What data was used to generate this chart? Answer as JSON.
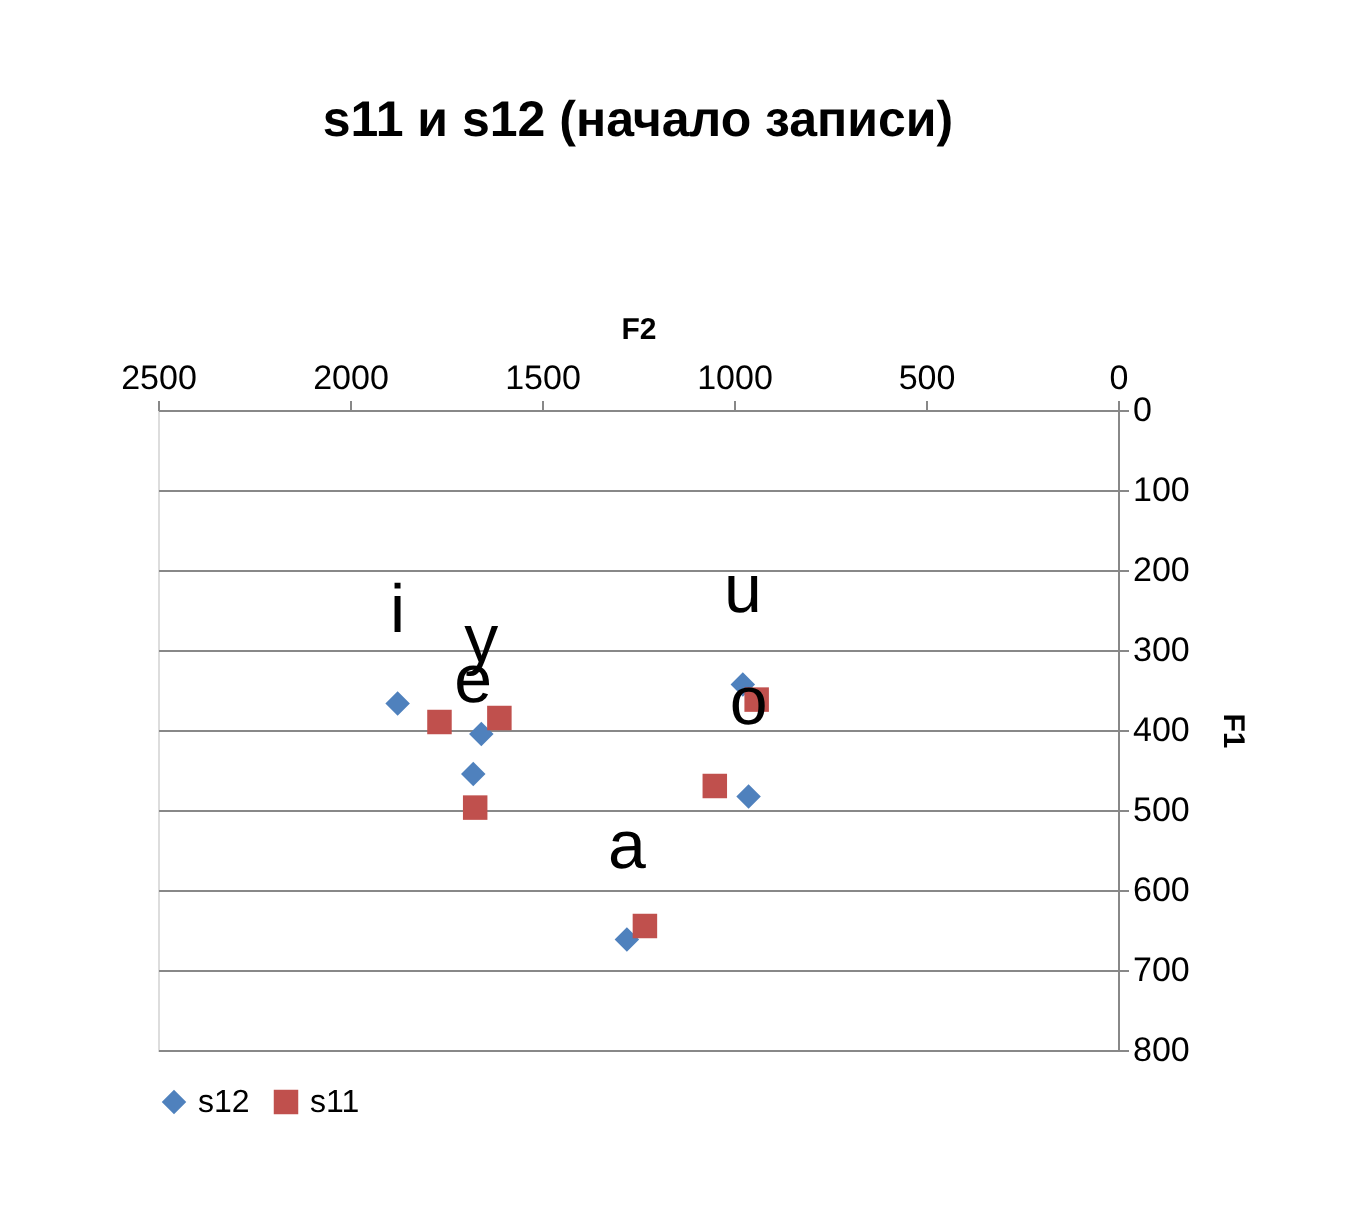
{
  "chart_data": {
    "type": "scatter",
    "title": "s11 и s12 (начало записи)",
    "xlabel": "F2",
    "ylabel": "F1",
    "xlim": [
      2500,
      0
    ],
    "xticks": [
      2500,
      2000,
      1500,
      1000,
      500,
      0
    ],
    "ylim": [
      800,
      0
    ],
    "yticks": [
      0,
      100,
      200,
      300,
      400,
      500,
      600,
      700,
      800
    ],
    "grid": "y",
    "legend": "bottom",
    "series": [
      {
        "name": "s12",
        "color": "#4f81bd",
        "marker": "diamond",
        "x": [
          1876,
          1658,
          1679,
          977,
          962,
          1279
        ],
        "values": [
          367,
          405,
          455,
          343,
          483,
          662
        ]
      },
      {
        "name": "s11",
        "color": "#c0504d",
        "marker": "square",
        "x": [
          1767,
          1611,
          1674,
          941,
          1050,
          1232
        ],
        "values": [
          390,
          385,
          497,
          362,
          470,
          645
        ]
      }
    ],
    "annotations": [
      {
        "text": "i",
        "x": 1876,
        "y": 367
      },
      {
        "text": "y",
        "x": 1658,
        "y": 405
      },
      {
        "text": "e",
        "x": 1679,
        "y": 455
      },
      {
        "text": "u",
        "x": 977,
        "y": 343
      },
      {
        "text": "o",
        "x": 962,
        "y": 483
      },
      {
        "text": "a",
        "x": 1279,
        "y": 662
      }
    ]
  }
}
